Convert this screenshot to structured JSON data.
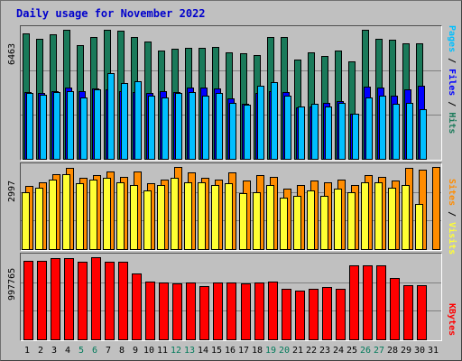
{
  "title": "Daily usage for November 2022",
  "colors": {
    "hits": "#1a7a5a",
    "files": "#0000ff",
    "pages": "#00bfff",
    "visits": "#ff8c00",
    "sites": "#ffff33",
    "kbytes": "#ff0000",
    "weekend_label": "#007a5a",
    "weekday_label": "#000000"
  },
  "chart_data": {
    "type": "bar",
    "categories": [
      "1",
      "2",
      "3",
      "4",
      "5",
      "6",
      "7",
      "8",
      "9",
      "10",
      "11",
      "12",
      "13",
      "14",
      "15",
      "16",
      "17",
      "18",
      "19",
      "20",
      "21",
      "22",
      "23",
      "24",
      "25",
      "26",
      "27",
      "28",
      "29",
      "30",
      "31"
    ],
    "weekend_days": [
      "5",
      "6",
      "12",
      "13",
      "19",
      "20",
      "26",
      "27"
    ],
    "panels": [
      {
        "name": "Hits/Files/Pages",
        "max_label": "6463",
        "legend": [
          "Pages",
          "Files",
          "Hits"
        ],
        "series": [
          {
            "name": "Hits",
            "values": [
              6300,
              6000,
              6250,
              6463,
              5700,
              6100,
              6480,
              6400,
              6100,
              5900,
              5450,
              5500,
              5580,
              5550,
              5600,
              5350,
              5300,
              5200,
              6100,
              6100,
              5000,
              5350,
              5150,
              5450,
              4900,
              6500,
              6000,
              5950,
              5800,
              5800,
              null
            ]
          },
          {
            "name": "Files",
            "values": [
              3350,
              3300,
              3400,
              3600,
              3400,
              3550,
              3500,
              3400,
              3350,
              3300,
              3400,
              3350,
              3600,
              3600,
              3550,
              3050,
              2800,
              3300,
              3400,
              3350,
              2600,
              2650,
              2850,
              2900,
              2300,
              3650,
              3600,
              3200,
              3500,
              3700,
              null
            ]
          },
          {
            "name": "Pages",
            "values": [
              3300,
              3250,
              3350,
              3400,
              3100,
              3500,
              4300,
              3800,
              3900,
              3200,
              3100,
              3300,
              3350,
              3200,
              3300,
              2850,
              2750,
              3700,
              3850,
              3200,
              2650,
              2800,
              2650,
              2850,
              2300,
              3100,
              3200,
              2800,
              2850,
              2500,
              null
            ]
          }
        ]
      },
      {
        "name": "Visits/Sites",
        "max_label": "2997",
        "legend": [
          "Sites",
          "Visits"
        ],
        "series": [
          {
            "name": "Visits",
            "values": [
              2300,
              2450,
              2750,
              2950,
              2600,
              2700,
              2850,
              2650,
              2850,
              2400,
              2550,
              2997,
              2800,
              2600,
              2550,
              2800,
              2500,
              2700,
              2650,
              2200,
              2350,
              2500,
              2450,
              2550,
              2350,
              2700,
              2650,
              2500,
              2950,
              2900,
              2997
            ]
          },
          {
            "name": "Sites",
            "values": [
              2100,
              2250,
              2550,
              2750,
              2400,
              2550,
              2600,
              2450,
              2350,
              2150,
              2350,
              2600,
              2450,
              2450,
              2350,
              2400,
              2050,
              2100,
              2350,
              1900,
              1950,
              2150,
              1950,
              2200,
              2100,
              2450,
              2450,
              2250,
              2350,
              1650,
              null
            ]
          }
        ]
      },
      {
        "name": "KBytes",
        "max_label": "997765",
        "legend": [
          "KBytes"
        ],
        "series": [
          {
            "name": "KBytes",
            "values": [
              950000,
              950000,
              990000,
              985000,
              940000,
              997765,
              940000,
              945000,
              805000,
              700000,
              690000,
              680000,
              690000,
              650000,
              690000,
              690000,
              680000,
              690000,
              705000,
              620000,
              600000,
              620000,
              640000,
              620000,
              895000,
              900000,
              895000,
              745000,
              660000,
              660000,
              null
            ]
          }
        ]
      }
    ]
  }
}
